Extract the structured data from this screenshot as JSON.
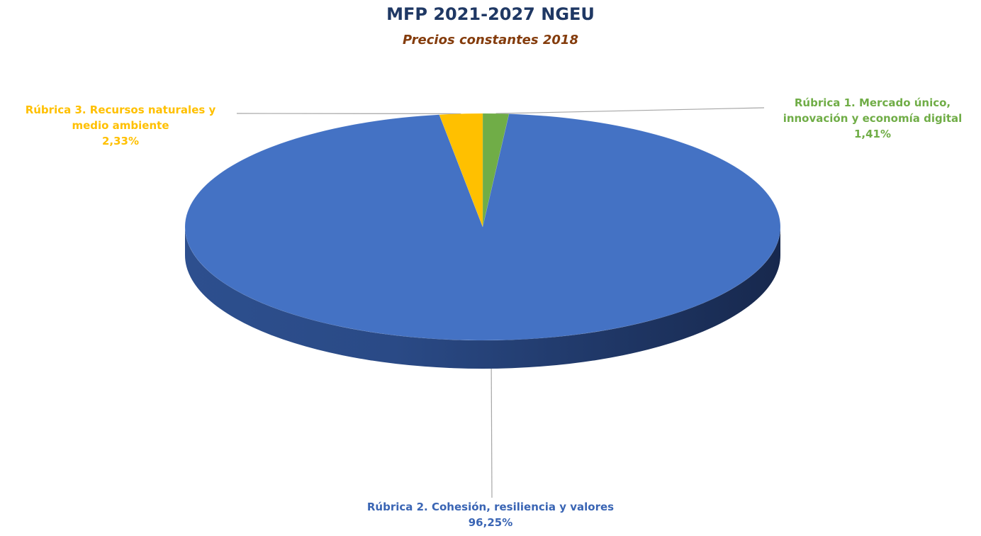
{
  "chart_data": {
    "type": "pie",
    "title": "MFP 2021-2027 NGEU",
    "subtitle": "Precios constantes 2018",
    "slices": [
      {
        "label_lines": [
          "Rúbrica 1. Mercado único,",
          "innovación y economía digital"
        ],
        "value_label": "1,41%",
        "value": 1.41,
        "color": "#70ad47"
      },
      {
        "label_lines": [
          "Rúbrica 2. Cohesión, resiliencia y valores"
        ],
        "value_label": "96,25%",
        "value": 96.25,
        "color": "#4472c4"
      },
      {
        "label_lines": [
          "Rúbrica 3. Recursos naturales y",
          "medio ambiente"
        ],
        "value_label": "2,33%",
        "value": 2.33,
        "color": "#ffc000"
      }
    ]
  }
}
